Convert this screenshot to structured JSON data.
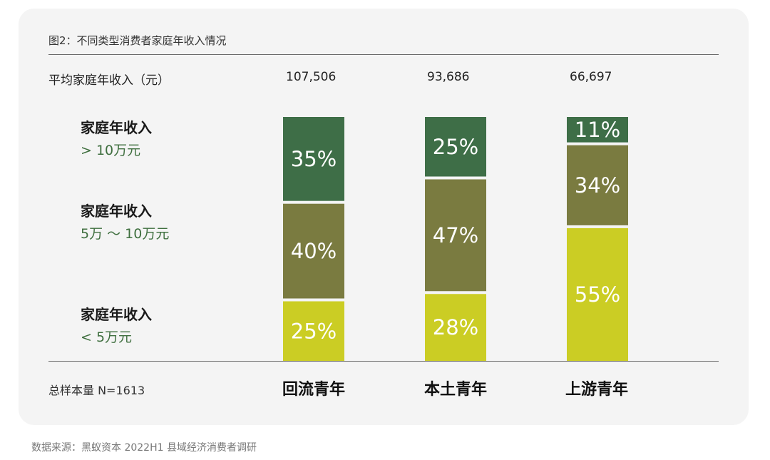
{
  "figure_title": "图2：不同类型消费者家庭年收入情况",
  "avg_income_label": "平均家庭年收入（元）",
  "avg_incomes": [
    "107,506",
    "93,686",
    "66,697"
  ],
  "tiers": [
    {
      "line1": "家庭年收入",
      "line2": "> 10万元"
    },
    {
      "line1": "家庭年收入",
      "line2": "5万 ～ 10万元"
    },
    {
      "line1": "家庭年收入",
      "line2": "< 5万元"
    }
  ],
  "sample_size": "总样本量 N=1613",
  "source": "数据来源：黑蚁资本 2022H1 县域经济消费者调研",
  "colors": {
    "high": "#3e6e47",
    "mid": "#7a7b40",
    "low": "#cbcd24"
  },
  "chart_data": {
    "type": "bar",
    "stacked": true,
    "categories": [
      "回流青年",
      "本土青年",
      "上游青年"
    ],
    "series": [
      {
        "name": "家庭年收入 < 5万元",
        "values": [
          25,
          28,
          55
        ]
      },
      {
        "name": "家庭年收入 5万 ～ 10万元",
        "values": [
          40,
          47,
          34
        ]
      },
      {
        "name": "家庭年收入 > 10万元",
        "values": [
          35,
          25,
          11
        ]
      }
    ],
    "value_labels": [
      [
        "25%",
        "28%",
        "55%"
      ],
      [
        "40%",
        "47%",
        "34%"
      ],
      [
        "35%",
        "25%",
        "11%"
      ]
    ],
    "ylim": [
      0,
      100
    ]
  }
}
